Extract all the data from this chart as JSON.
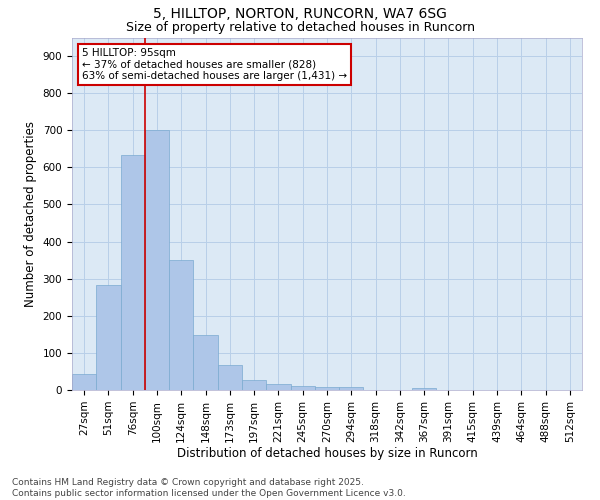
{
  "title": "5, HILLTOP, NORTON, RUNCORN, WA7 6SG",
  "subtitle": "Size of property relative to detached houses in Runcorn",
  "xlabel": "Distribution of detached houses by size in Runcorn",
  "ylabel": "Number of detached properties",
  "footer_line1": "Contains HM Land Registry data © Crown copyright and database right 2025.",
  "footer_line2": "Contains public sector information licensed under the Open Government Licence v3.0.",
  "categories": [
    "27sqm",
    "51sqm",
    "76sqm",
    "100sqm",
    "124sqm",
    "148sqm",
    "173sqm",
    "197sqm",
    "221sqm",
    "245sqm",
    "270sqm",
    "294sqm",
    "318sqm",
    "342sqm",
    "367sqm",
    "391sqm",
    "415sqm",
    "439sqm",
    "464sqm",
    "488sqm",
    "512sqm"
  ],
  "values": [
    43,
    283,
    632,
    700,
    350,
    147,
    67,
    28,
    17,
    11,
    9,
    7,
    0,
    0,
    6,
    0,
    0,
    0,
    0,
    0,
    0
  ],
  "bar_color": "#aec6e8",
  "bar_edge_color": "#7aaad0",
  "background_color": "#ffffff",
  "plot_bg_color": "#dce9f5",
  "grid_color": "#b8cfe8",
  "annotation_text": "5 HILLTOP: 95sqm\n← 37% of detached houses are smaller (828)\n63% of semi-detached houses are larger (1,431) →",
  "annotation_box_color": "#ffffff",
  "annotation_box_edge_color": "#cc0000",
  "vline_x": 2.5,
  "vline_color": "#cc0000",
  "ylim": [
    0,
    950
  ],
  "yticks": [
    0,
    100,
    200,
    300,
    400,
    500,
    600,
    700,
    800,
    900
  ],
  "title_fontsize": 10,
  "subtitle_fontsize": 9,
  "axis_label_fontsize": 8.5,
  "tick_fontsize": 7.5,
  "annotation_fontsize": 7.5,
  "footer_fontsize": 6.5
}
